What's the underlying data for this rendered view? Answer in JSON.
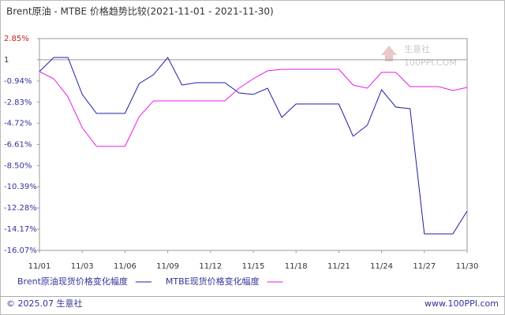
{
  "chart_data": {
    "type": "line",
    "title": "Brent原油 - MTBE 价格趋势比较(2021-11-01 - 2021-11-30)",
    "categories": [
      "11/01",
      null,
      null,
      "11/03",
      null,
      null,
      "11/06",
      null,
      null,
      "11/09",
      null,
      null,
      "11/12",
      null,
      null,
      "11/15",
      null,
      null,
      "11/18",
      null,
      null,
      "11/21",
      null,
      null,
      "11/24",
      null,
      null,
      "11/27",
      null,
      null,
      "11/30"
    ],
    "ylim": [
      -16.07,
      2.85
    ],
    "yticks": [
      {
        "value": 2.85,
        "label": "2.85%"
      },
      {
        "value": 0.96,
        "label": "1"
      },
      {
        "value": -0.94,
        "label": "-0.94%"
      },
      {
        "value": -2.83,
        "label": "-2.83%"
      },
      {
        "value": -4.72,
        "label": "-4.72%"
      },
      {
        "value": -6.61,
        "label": "-6.61%"
      },
      {
        "value": -8.5,
        "label": "-8.50%"
      },
      {
        "value": -10.39,
        "label": "-10.39%"
      },
      {
        "value": -12.28,
        "label": "-12.28%"
      },
      {
        "value": -14.17,
        "label": "-14.17%"
      },
      {
        "value": -16.07,
        "label": "-16.07%"
      }
    ],
    "series": [
      {
        "name": "Brent原油现货价格变化幅度",
        "color": "#1c1ca8",
        "values": [
          -0.1,
          1.16,
          1.16,
          -2.14,
          -3.83,
          -3.83,
          -3.83,
          -1.16,
          -0.38,
          1.16,
          -1.3,
          -1.09,
          -1.09,
          -1.09,
          -2.0,
          -2.14,
          -1.58,
          -4.18,
          -2.99,
          -2.99,
          -2.99,
          -2.99,
          -5.87,
          -4.89,
          -1.72,
          -3.27,
          -3.41,
          -14.59,
          -14.59,
          -14.59,
          -12.55
        ]
      },
      {
        "name": "MTBE现货价格变化幅度",
        "color": "#e619e6",
        "values": [
          -0.1,
          -0.74,
          -2.35,
          -5.1,
          -6.78,
          -6.78,
          -6.78,
          -4.11,
          -2.71,
          -2.71,
          -2.71,
          -2.71,
          -2.71,
          -2.71,
          -1.58,
          -0.74,
          -0.03,
          0.11,
          0.11,
          0.11,
          0.11,
          0.11,
          -1.3,
          -1.58,
          -0.17,
          -0.17,
          -1.44,
          -1.44,
          -1.44,
          -1.79,
          -1.51
        ]
      }
    ],
    "watermark": {
      "name": "生意社",
      "site": "100PPI.COM"
    },
    "footer": {
      "left": "© 2025.07 生意社",
      "right": "www.100PPI.com"
    }
  }
}
